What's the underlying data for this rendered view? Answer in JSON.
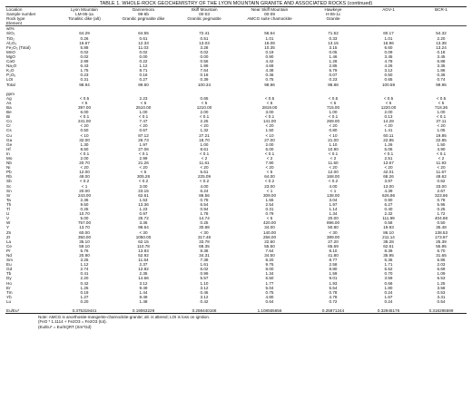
{
  "title": "TABLE 1. WHOLE-ROCK GEOCHEMISTRY OF THE LYON MOUNTAIN GRANITE AND ASSOCIATED ROCKS (continued)",
  "header_rows": [
    {
      "label": "Location",
      "cells": [
        "Lyon Mountain",
        "Dannemora",
        "Skiff Mountain",
        "Near Skiff Mountain",
        "Hawkeye",
        "AGV-1",
        "BCR-1"
      ]
    },
    {
      "label": "Sample number",
      "cells": [
        "LM-06-1a",
        "99-6b",
        "00-03",
        "00-09",
        "H-06-1c",
        "",
        ""
      ]
    },
    {
      "label": "Rock type",
      "cells": [
        "Tonalitic dike (alt)",
        "Granitic pegmatite dike",
        "Granitic pegmatite",
        "AMCG suite chamockite",
        "Granite",
        "",
        ""
      ]
    },
    {
      "label": "Element",
      "cells": [
        "",
        "",
        "",
        "",
        "",
        "",
        ""
      ]
    }
  ],
  "major_unit": "wt%",
  "major_rows": [
    {
      "label": "SiO₂",
      "cells": [
        "64.29",
        "64.55",
        "72.41",
        "56.64",
        "71.52",
        "60.17",
        "54.32"
      ]
    },
    {
      "label": "TiO₂",
      "cells": [
        "0.26",
        "0.61",
        "0.51",
        "1.01",
        "0.33",
        "1.01",
        "2.20"
      ]
    },
    {
      "label": "Al₂O₃",
      "cells": [
        "16.67",
        "12.33",
        "13.03",
        "16.08",
        "13.15",
        "16.96",
        "13.38"
      ]
    },
    {
      "label": "Fe₂O₃ (Total)",
      "cells": [
        "5.88",
        "11.03",
        "3.28",
        "10.35",
        "3.15",
        "6.60",
        "13.24"
      ]
    },
    {
      "label": "MnO",
      "cells": [
        "0.02",
        "0.02",
        "0.02",
        "0.19",
        "0.05",
        "0.09",
        "0.18"
      ]
    },
    {
      "label": "MgO",
      "cells": [
        "0.02",
        "0.00",
        "0.00",
        "0.90",
        "1.46",
        "3.45",
        "3.45"
      ]
    },
    {
      "label": "CaO",
      "cells": [
        "2.99",
        "0.22",
        "0.56",
        "4.42",
        "1.28",
        "4.78",
        "6.88"
      ]
    },
    {
      "label": "Na₂O",
      "cells": [
        "6.43",
        "1.12",
        "1.99",
        "4.69",
        "2.85",
        "4.26",
        "3.35"
      ]
    },
    {
      "label": "K₂O",
      "cells": [
        "1.75",
        "8.71",
        "7.64",
        "4.38",
        "5.79",
        "3.12",
        "1.86"
      ]
    },
    {
      "label": "P₂O₅",
      "cells": [
        "0.23",
        "0.16",
        "0.18",
        "0.46",
        "0.07",
        "0.50",
        "0.36"
      ]
    },
    {
      "label": "LOI",
      "cells": [
        "0.31",
        "0.27",
        "0.39",
        "0.75",
        "0.23",
        "0.65",
        "0.74"
      ]
    },
    {
      "label": "Total",
      "cells": [
        "98.94",
        "99.60",
        "100.34",
        "98.86",
        "98.88",
        "100.59",
        "99.95"
      ]
    }
  ],
  "trace_unit": "ppm",
  "trace_rows": [
    {
      "label": "Ag",
      "cells": [
        "< 0.5",
        "2.23",
        "0.65",
        "< 0.5",
        "< 0.5",
        "< 0.5",
        "< 0.5"
      ]
    },
    {
      "label": "As",
      "cells": [
        "< 5",
        "< 5",
        "< 5",
        "< 5",
        "< 5",
        "< 5",
        "< 5"
      ]
    },
    {
      "label": "Ba",
      "cells": [
        "397.00",
        "2510.00",
        "1210.00",
        "2819.00",
        "715.00",
        "1220.00",
        "718.36"
      ]
    },
    {
      "label": "Be",
      "cells": [
        "6.00",
        "1.00",
        "2.00",
        "3.00",
        "1.00",
        "2.00",
        "1.00"
      ]
    },
    {
      "label": "Bi",
      "cells": [
        "< 0.1",
        "< 0.1",
        "< 0.1",
        "< 0.1",
        "< 0.1",
        "0.13",
        "< 0.1"
      ]
    },
    {
      "label": "Co",
      "cells": [
        "241.00",
        "7.47",
        "2.25",
        "141.00",
        "269.00",
        "14.28",
        "37.11"
      ]
    },
    {
      "label": "Cr",
      "cells": [
        "< 20",
        "< 20",
        "< 20",
        "< 20",
        "< 20",
        "< 20",
        "< 20"
      ]
    },
    {
      "label": "Cs",
      "cells": [
        "0.50",
        "0.67",
        "1.32",
        "1.50",
        "0.80",
        "1.41",
        "1.05"
      ]
    },
    {
      "label": "Cu",
      "cells": [
        "< 10",
        "87.12",
        "27.21",
        "< 10",
        "< 10",
        "60.11",
        "19.85"
      ]
    },
    {
      "label": "Ga",
      "cells": [
        "32.00",
        "26.73",
        "18.70",
        "27.00",
        "21.00",
        "22.85",
        "22.85"
      ]
    },
    {
      "label": "Ge",
      "cells": [
        "1.30",
        "1.97",
        "1.00",
        "2.00",
        "1.10",
        "1.26",
        "1.50"
      ]
    },
    {
      "label": "Hf",
      "cells": [
        "8.50",
        "27.06",
        "8.61",
        "6.00",
        "10.90",
        "5.05",
        "4.90"
      ]
    },
    {
      "label": "In",
      "cells": [
        "< 0.1",
        "< 0.1",
        "< 0.1",
        "< 0.1",
        "< 0.1",
        "< 0.1",
        "< 0.1"
      ]
    },
    {
      "label": "Mo",
      "cells": [
        "2.00",
        "2.99",
        "< 2",
        "< 2",
        "< 2",
        "2.51",
        "< 2"
      ]
    },
    {
      "label": "Nb",
      "cells": [
        "20.70",
        "21.26",
        "11.61",
        "7.90",
        "11.50",
        "13.67",
        "11.93"
      ]
    },
    {
      "label": "Ni",
      "cells": [
        "< 20",
        "< 20",
        "< 20",
        "< 20",
        "< 20",
        "< 20",
        "< 20"
      ]
    },
    {
      "label": "Pb",
      "cells": [
        "12.00",
        "< 5",
        "5.61",
        "< 5",
        "12.00",
        "42.01",
        "11.67"
      ]
    },
    {
      "label": "Rb",
      "cells": [
        "48.00",
        "305.28",
        "225.09",
        "64.00",
        "168.00",
        "68.26",
        "48.62"
      ]
    },
    {
      "label": "Sb",
      "cells": [
        "< 0.2",
        "< 0.2",
        "< 0.2",
        "< 0.2",
        "< 0.2",
        "3.87",
        "0.62"
      ]
    },
    {
      "label": "Sc",
      "cells": [
        "< 1",
        "3.00",
        "4.00",
        "23.00",
        "4.00",
        "13.00",
        "33.00"
      ]
    },
    {
      "label": "Sn",
      "cells": [
        "20.00",
        "23.15",
        "6.24",
        "< 1",
        "< 1",
        "4.39",
        "2.67"
      ]
    },
    {
      "label": "Sr",
      "cells": [
        "243.00",
        "62.61",
        "86.56",
        "309.00",
        "138.00",
        "626.96",
        "323.66"
      ]
    },
    {
      "label": "Ta",
      "cells": [
        "2.36",
        "1.53",
        "0.78",
        "1.55",
        "3.04",
        "0.90",
        "0.78"
      ]
    },
    {
      "label": "Th",
      "cells": [
        "9.50",
        "13.36",
        "6.54",
        "2.54",
        "1.97",
        "6.27",
        "5.95"
      ]
    },
    {
      "label": "Tl",
      "cells": [
        "0.25",
        "1.23",
        "0.94",
        "0.31",
        "1.14",
        "0.40",
        "0.25"
      ]
    },
    {
      "label": "U",
      "cells": [
        "10.70",
        "0.97",
        "1.78",
        "0.79",
        "1.34",
        "2.32",
        "1.72"
      ]
    },
    {
      "label": "V",
      "cells": [
        "5.00",
        "25.72",
        "14.74",
        "< 5",
        "20.00",
        "111.99",
        "404.68"
      ]
    },
    {
      "label": "W",
      "cells": [
        "757.00",
        "3.36",
        "0.25",
        "420.00",
        "896.00",
        "0.58",
        "0.50"
      ]
    },
    {
      "label": "Y",
      "cells": [
        "13.70",
        "98.64",
        "30.88",
        "34.00",
        "50.80",
        "19.93",
        "35.48"
      ]
    },
    {
      "label": "Zn",
      "cells": [
        "60.00",
        "< 30",
        "< 30",
        "140.00",
        "< 30",
        "86.10",
        "138.53"
      ]
    },
    {
      "label": "Zr",
      "cells": [
        "350.00",
        "1050.00",
        "317.48",
        "256.00",
        "389.00",
        "211.14",
        "173.97"
      ]
    },
    {
      "label": "La",
      "cells": [
        "35.10",
        "62.15",
        "33.78",
        "22.60",
        "27.20",
        "38.28",
        "25.39"
      ]
    },
    {
      "label": "Ce",
      "cells": [
        "59.10",
        "110.78",
        "68.35",
        "55.50",
        "65.69",
        "62.61",
        "55.95"
      ]
    },
    {
      "label": "Pr",
      "cells": [
        "5.76",
        "13.93",
        "8.38",
        "7.64",
        "8.10",
        "8.39",
        "6.70"
      ]
    },
    {
      "label": "Nd",
      "cells": [
        "20.80",
        "52.92",
        "34.31",
        "34.50",
        "41.80",
        "35.95",
        "31.65"
      ]
    },
    {
      "label": "Sm",
      "cells": [
        "3.25",
        "11.64",
        "7.38",
        "8.20",
        "8.77",
        "6.36",
        "6.86"
      ]
    },
    {
      "label": "Eu",
      "cells": [
        "1.12",
        "2.37",
        "1.61",
        "9.76",
        "2.58",
        "1.71",
        "2.03"
      ]
    },
    {
      "label": "Gd",
      "cells": [
        "2.74",
        "12.82",
        "6.02",
        "8.00",
        "8.80",
        "5.52",
        "6.69"
      ]
    },
    {
      "label": "Tb",
      "cells": [
        "0.41",
        "2.35",
        "0.99",
        "1.34",
        "1.59",
        "0.70",
        "1.09"
      ]
    },
    {
      "label": "Dy",
      "cells": [
        "2.20",
        "14.66",
        "5.57",
        "6.50",
        "9.01",
        "3.59",
        "6.53"
      ]
    },
    {
      "label": "Ho",
      "cells": [
        "0.42",
        "3.12",
        "1.10",
        "1.77",
        "1.93",
        "0.66",
        "1.25"
      ]
    },
    {
      "label": "Er",
      "cells": [
        "1.25",
        "9.49",
        "3.12",
        "5.04",
        "5.54",
        "1.80",
        "3.58"
      ]
    },
    {
      "label": "Tm",
      "cells": [
        "0.19",
        "1.44",
        "0.46",
        "0.75",
        "0.78",
        "0.24",
        "0.53"
      ]
    },
    {
      "label": "Yb",
      "cells": [
        "1.27",
        "9.49",
        "3.12",
        "4.80",
        "4.78",
        "1.67",
        "3.31"
      ]
    },
    {
      "label": "Lu",
      "cells": [
        "0.20",
        "1.48",
        "0.42",
        "0.64",
        "0.72",
        "0.24",
        "0.54"
      ]
    }
  ],
  "ratio_row": {
    "label": "Eu/Eu*",
    "cells": [
      "0.375319441",
      "0.19063229",
      "0.259440168",
      "1.108555656",
      "0.25871244",
      "0.32945176",
      "0.318295599"
    ]
  },
  "notes": [
    "Note: AMCG is anorthosite-mangerite-charnockite-granite; alt. is altered; LOI is loss on ignition.",
    "(FeO * 1.1114 + Fe2O3 = Fe2O3 (tot).",
    "(Eu/Eu* = Eu/SQRT (Sm*Gd)"
  ]
}
